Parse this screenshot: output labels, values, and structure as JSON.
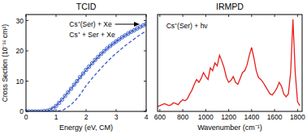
{
  "chart_data": [
    {
      "type": "scatter",
      "title": "TCID",
      "x_label": "Energy (eV, CM)",
      "y_label": "Cross Section (10⁻¹⁶ cm²)",
      "annotations": [
        "Cs⁺(Ser) + Xe",
        "Cs⁺ + Ser + Xe"
      ],
      "xlim": [
        0,
        4
      ],
      "xticks": [
        0,
        1,
        2,
        3,
        4
      ],
      "ylim": [
        0,
        32
      ],
      "yticks": [
        0,
        10,
        20,
        30
      ],
      "grid": false,
      "series": [
        {
          "type": "scatter",
          "marker": "circle",
          "line_style": "none",
          "color": "#3a5bc7",
          "x": [
            0,
            0.1,
            0.2,
            0.3,
            0.4,
            0.5,
            0.6,
            0.7,
            0.8,
            0.9,
            1.0,
            1.1,
            1.2,
            1.3,
            1.4,
            1.5,
            1.6,
            1.7,
            1.8,
            1.9,
            2.0,
            2.1,
            2.2,
            2.3,
            2.4,
            2.5,
            2.6,
            2.7,
            2.8,
            2.9,
            3.0,
            3.1,
            3.2,
            3.3,
            3.4,
            3.5,
            3.6,
            3.7,
            3.8,
            3.9,
            4.0
          ],
          "values": [
            0,
            0,
            0,
            0,
            0,
            0,
            0.1,
            0.2,
            0.5,
            1.0,
            1.8,
            2.8,
            3.9,
            5.1,
            6.3,
            7.5,
            8.8,
            10.0,
            11.3,
            12.5,
            13.7,
            14.8,
            15.9,
            17.0,
            18.0,
            19.0,
            19.9,
            20.8,
            21.6,
            22.4,
            23.1,
            23.8,
            24.5,
            25.1,
            25.7,
            26.3,
            26.8,
            27.4,
            27.9,
            28.4,
            28.9
          ]
        },
        {
          "type": "line",
          "line_style": "solid",
          "color": "#3a5bc7",
          "x": [
            0,
            0.25,
            0.5,
            0.75,
            1.0,
            1.25,
            1.5,
            1.75,
            2.0,
            2.25,
            2.5,
            2.75,
            3.0,
            3.25,
            3.5,
            3.75,
            4.0
          ],
          "values": [
            0,
            0,
            0,
            0.2,
            1.8,
            4.5,
            7.5,
            10.6,
            13.7,
            16.4,
            19.0,
            21.2,
            23.1,
            24.8,
            26.3,
            27.6,
            28.9
          ]
        },
        {
          "type": "line",
          "line_style": "dashed",
          "color": "#3a5bc7",
          "x": [
            0,
            0.25,
            0.5,
            0.75,
            1.0,
            1.25,
            1.5,
            1.75,
            2.0,
            2.25,
            2.5,
            2.75,
            3.0,
            3.25,
            3.5,
            3.75,
            4.0
          ],
          "values": [
            0,
            0,
            0,
            0,
            0,
            0.5,
            2.2,
            4.8,
            8.5,
            11.5,
            14.3,
            16.9,
            19.2,
            21.3,
            23.2,
            25.0,
            26.6
          ]
        }
      ]
    },
    {
      "type": "line",
      "title": "IRMPD",
      "x_label": "Wavenumber (cm⁻¹)",
      "annotations": [
        "Cs⁺(Ser) + hν"
      ],
      "xlim": [
        580,
        1840
      ],
      "xticks": [
        600,
        800,
        1000,
        1200,
        1400,
        1600,
        1800
      ],
      "ylim": [
        0,
        1
      ],
      "tick_labels": "x",
      "grid": false,
      "series": [
        {
          "type": "line",
          "line_style": "solid",
          "color": "#e8201e",
          "x": [
            580,
            600,
            620,
            640,
            660,
            680,
            700,
            720,
            740,
            760,
            780,
            800,
            820,
            840,
            860,
            880,
            900,
            920,
            940,
            960,
            980,
            1000,
            1020,
            1040,
            1060,
            1080,
            1100,
            1120,
            1140,
            1160,
            1180,
            1200,
            1220,
            1240,
            1260,
            1280,
            1300,
            1320,
            1340,
            1360,
            1380,
            1400,
            1420,
            1440,
            1460,
            1480,
            1500,
            1520,
            1540,
            1560,
            1580,
            1600,
            1620,
            1640,
            1660,
            1680,
            1700,
            1720,
            1740,
            1760,
            1780,
            1800,
            1820
          ],
          "values": [
            0.05,
            0.06,
            0.07,
            0.08,
            0.07,
            0.06,
            0.07,
            0.09,
            0.08,
            0.07,
            0.1,
            0.12,
            0.11,
            0.13,
            0.18,
            0.22,
            0.28,
            0.33,
            0.3,
            0.34,
            0.4,
            0.36,
            0.33,
            0.45,
            0.42,
            0.5,
            0.47,
            0.58,
            0.52,
            0.45,
            0.35,
            0.3,
            0.32,
            0.36,
            0.3,
            0.28,
            0.34,
            0.4,
            0.42,
            0.48,
            0.58,
            0.66,
            0.55,
            0.42,
            0.35,
            0.33,
            0.3,
            0.26,
            0.22,
            0.18,
            0.17,
            0.2,
            0.24,
            0.3,
            0.26,
            0.18,
            0.15,
            0.18,
            0.4,
            0.95,
            0.4,
            0.1,
            0.06
          ]
        }
      ]
    }
  ]
}
